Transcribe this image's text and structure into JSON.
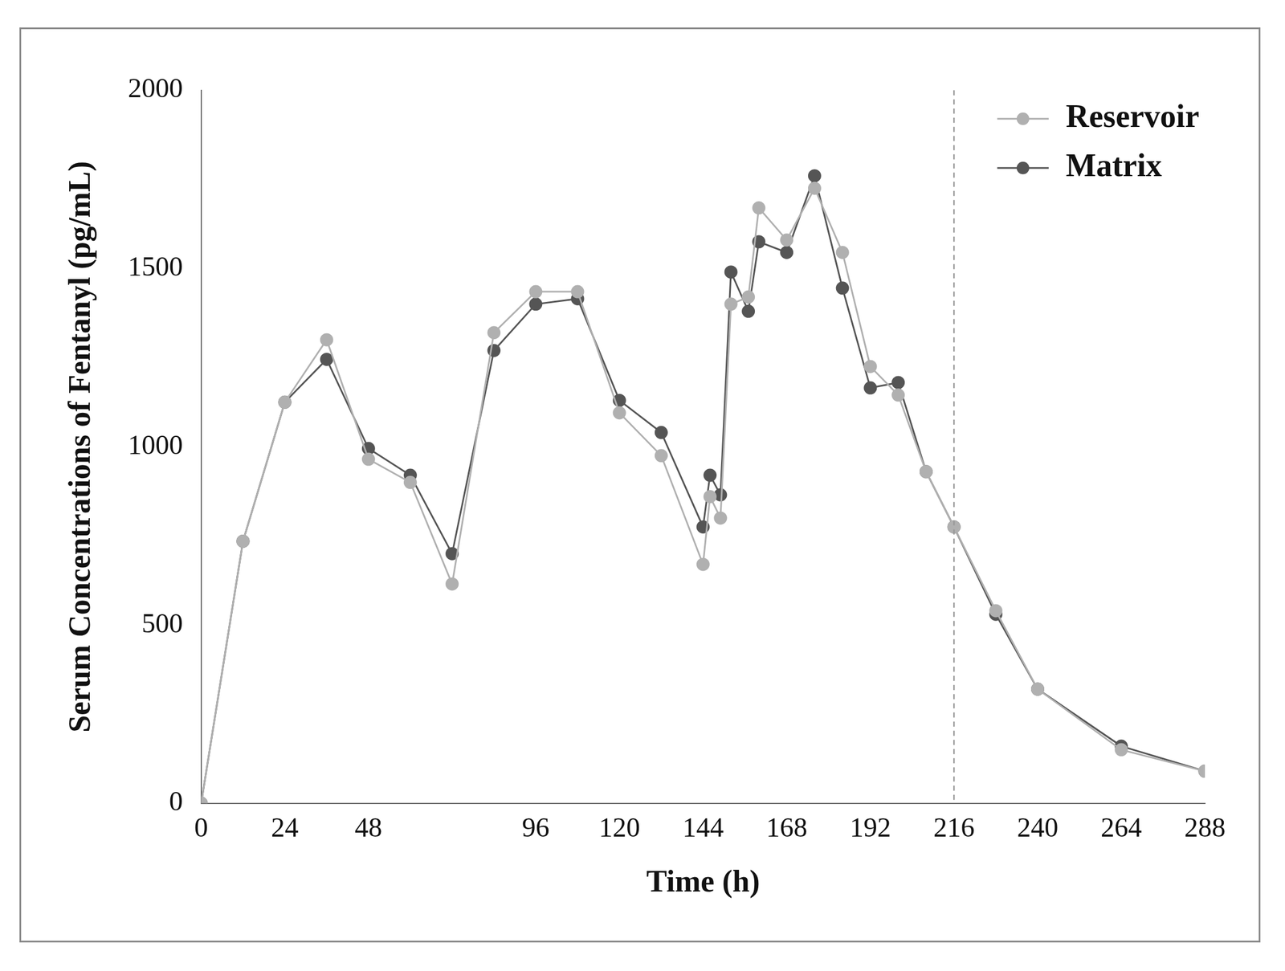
{
  "chart_data": {
    "type": "line",
    "x_label": "Time (h)",
    "y_label": "Serum Concentrations of Fentanyl (pg/mL)",
    "x": [
      0,
      12,
      24,
      36,
      48,
      60,
      72,
      84,
      96,
      108,
      120,
      132,
      144,
      146,
      149,
      152,
      157,
      160,
      168,
      176,
      184,
      192,
      200,
      208,
      216,
      228,
      240,
      264,
      288
    ],
    "series": [
      {
        "name": "Reservoir",
        "color": "#b0b0b0",
        "marker": "circle",
        "line_style": "solid",
        "values": [
          0,
          735,
          1125,
          1300,
          965,
          900,
          615,
          1320,
          1435,
          1435,
          1095,
          975,
          670,
          860,
          800,
          1400,
          1420,
          1670,
          1580,
          1725,
          1545,
          1225,
          1145,
          930,
          775,
          540,
          320,
          150,
          90
        ]
      },
      {
        "name": "Matrix",
        "color": "#555555",
        "marker": "circle",
        "line_style": "solid",
        "values": [
          0,
          735,
          1125,
          1245,
          995,
          920,
          700,
          1270,
          1400,
          1415,
          1130,
          1040,
          775,
          920,
          865,
          1490,
          1380,
          1575,
          1545,
          1760,
          1445,
          1165,
          1180,
          930,
          775,
          530,
          320,
          160,
          90
        ]
      }
    ],
    "xlim": [
      0,
      288
    ],
    "xticks": [
      0,
      24,
      48,
      96,
      120,
      144,
      168,
      192,
      216,
      240,
      264,
      288
    ],
    "ylim": [
      0,
      2000
    ],
    "yticks": [
      0,
      500,
      1000,
      1500,
      2000
    ],
    "reference_x": 216,
    "grid": false,
    "legend": "upper right"
  }
}
